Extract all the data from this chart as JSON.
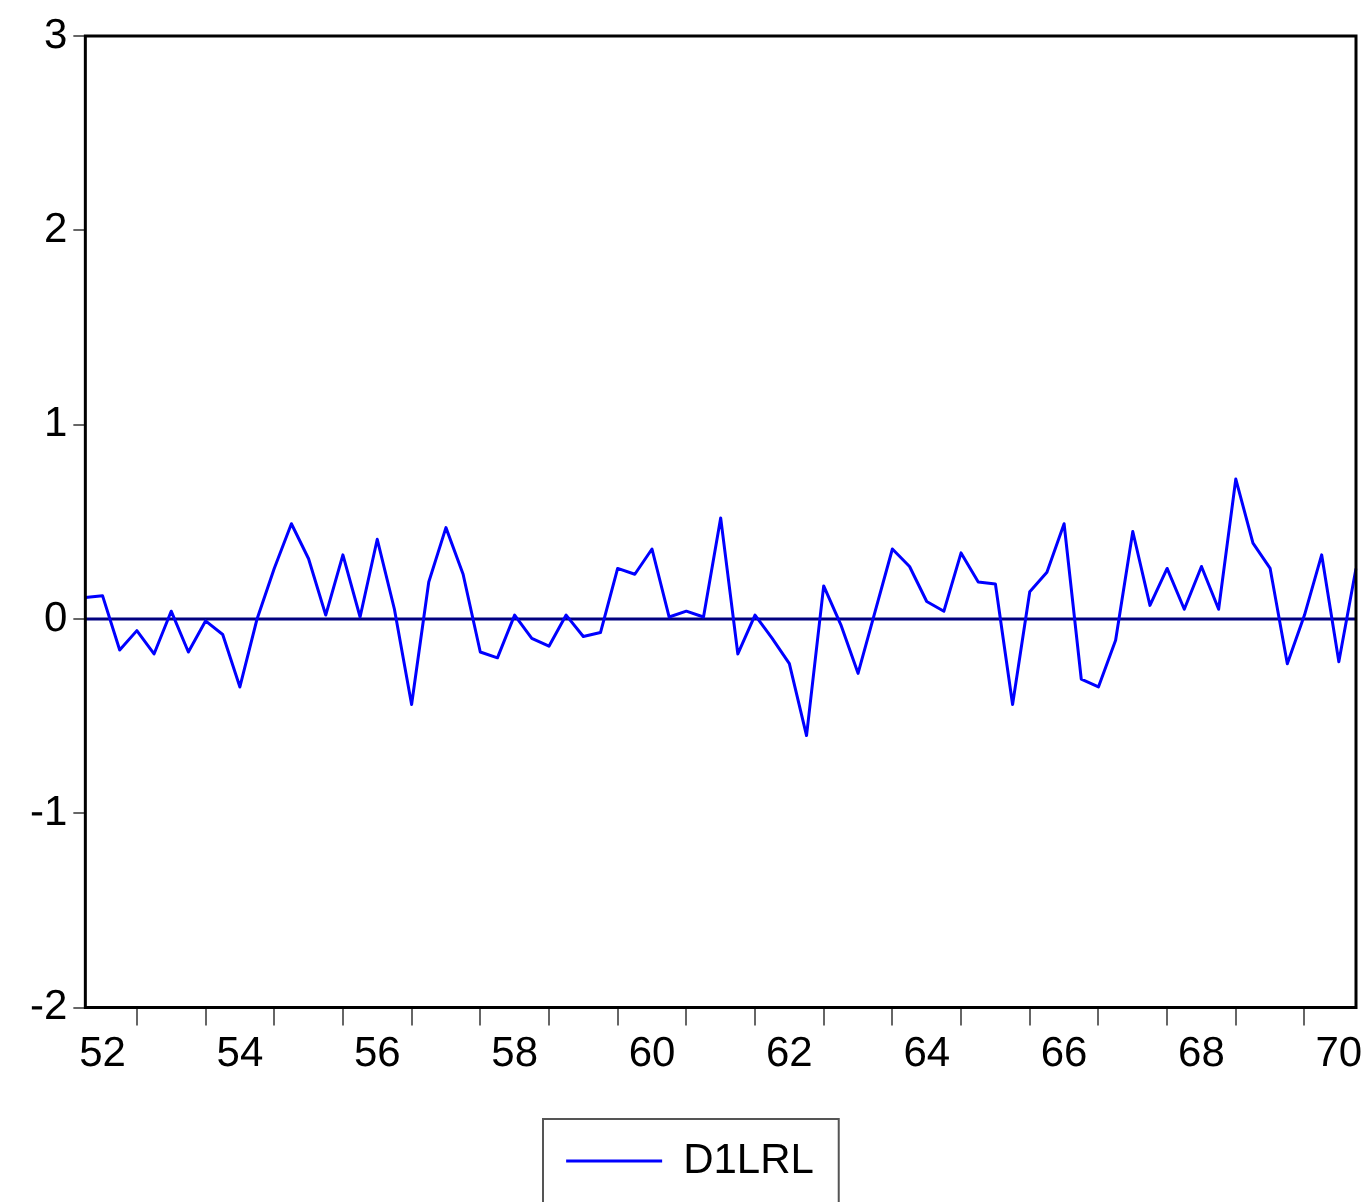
{
  "chart_data": {
    "type": "line",
    "categories": [
      null,
      "52",
      null,
      null,
      null,
      null,
      null,
      null,
      null,
      "54",
      null,
      null,
      null,
      null,
      null,
      null,
      null,
      "56",
      null,
      null,
      null,
      null,
      null,
      null,
      null,
      "58",
      null,
      null,
      null,
      null,
      null,
      null,
      null,
      "60",
      null,
      null,
      null,
      null,
      null,
      null,
      null,
      "62",
      null,
      null,
      null,
      null,
      null,
      null,
      null,
      "64",
      null,
      null,
      null,
      null,
      null,
      null,
      null,
      "66",
      null,
      null,
      null,
      null,
      null,
      null,
      null,
      "68",
      null,
      null,
      null,
      null,
      null,
      null,
      null,
      "70",
      null
    ],
    "series": [
      {
        "name": "D1LRL",
        "color": "#0000ff",
        "values": [
          0.11,
          0.12,
          -0.16,
          -0.06,
          -0.18,
          0.04,
          -0.17,
          -0.01,
          -0.08,
          -0.35,
          0.0,
          0.26,
          0.49,
          0.31,
          0.02,
          0.33,
          0.01,
          0.41,
          0.05,
          -0.44,
          0.19,
          0.47,
          0.23,
          -0.17,
          -0.2,
          0.02,
          -0.1,
          -0.14,
          0.02,
          -0.09,
          -0.07,
          0.26,
          0.23,
          0.36,
          0.01,
          0.04,
          0.01,
          0.52,
          -0.18,
          0.02,
          -0.1,
          -0.23,
          -0.6,
          0.17,
          -0.03,
          -0.28,
          0.04,
          0.36,
          0.27,
          0.09,
          0.04,
          0.34,
          0.19,
          0.18,
          -0.44,
          0.14,
          0.24,
          0.49,
          -0.31,
          -0.35,
          -0.11,
          0.45,
          0.07,
          0.26,
          0.05,
          0.27,
          0.05,
          0.72,
          0.39,
          0.26,
          -0.23,
          0.02,
          0.33,
          -0.22,
          0.26
        ]
      }
    ],
    "ylim": [
      -2,
      3
    ],
    "yticks": [
      -2,
      -1,
      0,
      1,
      2,
      3
    ],
    "ref_lines": [
      {
        "axis": "y",
        "value": 0,
        "color": "#000080"
      }
    ],
    "grid": false,
    "legend": "bottom",
    "marker": "none",
    "line_style": "solid"
  }
}
